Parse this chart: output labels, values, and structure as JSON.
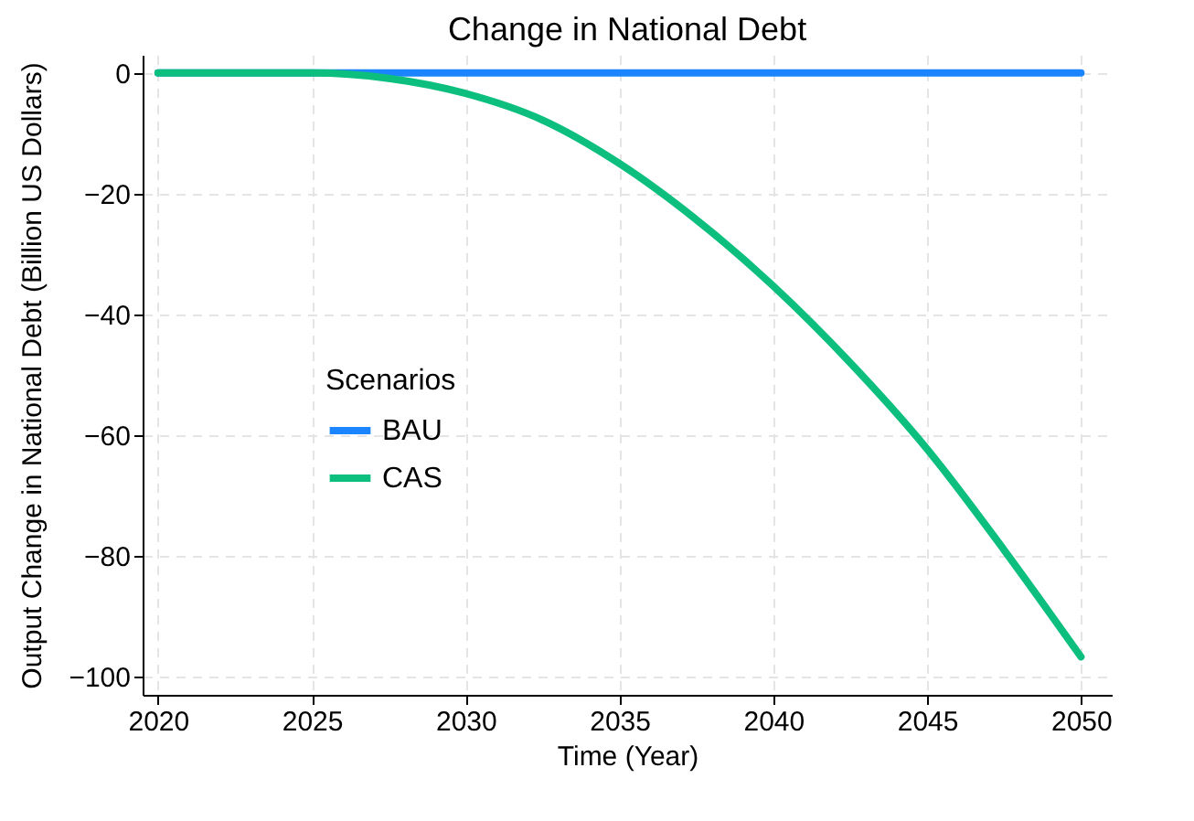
{
  "chart_data": {
    "type": "line",
    "title": "Change in National Debt",
    "xlabel": "Time (Year)",
    "ylabel": "Output Change in National Debt (Billion US Dollars)",
    "legend_title": "Scenarios",
    "x": [
      2020,
      2022.5,
      2025,
      2027.5,
      2030,
      2032.5,
      2035,
      2037.5,
      2040,
      2042.5,
      2045,
      2047.5,
      2050
    ],
    "series": [
      {
        "name": "BAU",
        "color": "#1a85ff",
        "values": [
          0,
          0,
          0,
          0,
          0,
          0,
          0,
          0,
          0,
          0,
          0,
          0,
          0
        ]
      },
      {
        "name": "CAS",
        "color": "#0cbf7f",
        "values": [
          0,
          0,
          0,
          -0.9,
          -3.4,
          -7.8,
          -15,
          -24.3,
          -35.3,
          -48,
          -62.3,
          -79,
          -96.7
        ]
      }
    ],
    "xlim": [
      2019.5,
      2051
    ],
    "xticks": [
      2020,
      2025,
      2030,
      2035,
      2040,
      2045,
      2050
    ],
    "ylim": [
      -103,
      3
    ],
    "yticks": [
      -100,
      -80,
      -60,
      -40,
      -20,
      0
    ],
    "grid": true,
    "legend": "left",
    "line_style": "solid",
    "marker": "none"
  }
}
